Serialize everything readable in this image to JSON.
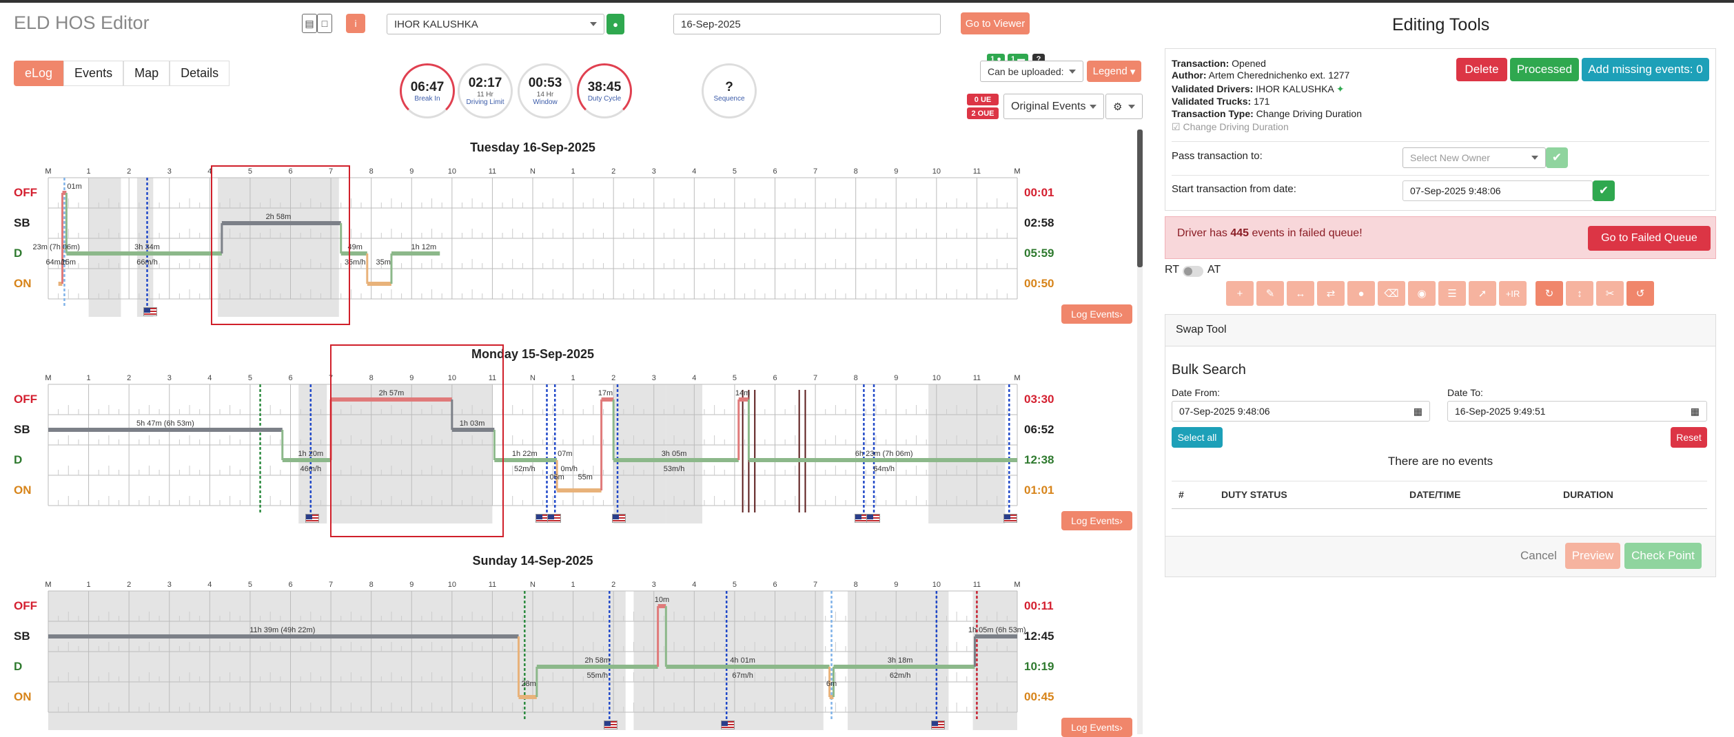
{
  "app": {
    "title": "ELD HOS Editor"
  },
  "header": {
    "driver_select": "IHOR KALUSHKA",
    "date_input": "16-Sep-2025",
    "go_viewer": "Go to Viewer"
  },
  "tabs": [
    "eLog",
    "Events",
    "Map",
    "Details"
  ],
  "gauges": [
    {
      "value": "06:47",
      "sub": "",
      "label": "Break In"
    },
    {
      "value": "02:17",
      "sub": "11 Hr",
      "label": "Driving Limit"
    },
    {
      "value": "00:53",
      "sub": "14 Hr",
      "label": "Window"
    },
    {
      "value": "38:45",
      "sub": "",
      "label": "Duty Cycle"
    },
    {
      "value": "?",
      "sub": "",
      "label": "Sequence"
    }
  ],
  "badges": {
    "drivers": "1",
    "trucks": "1",
    "question": "?",
    "ue": "0 UE",
    "oue": "2 OUE"
  },
  "controls": {
    "upload_select": "Can be uploaded:",
    "legend": "Legend",
    "events_select": "Original Events"
  },
  "status_labels": [
    "OFF",
    "SB",
    "D",
    "ON"
  ],
  "hour_labels": [
    "M",
    "1",
    "2",
    "3",
    "4",
    "5",
    "6",
    "7",
    "8",
    "9",
    "10",
    "11",
    "N",
    "1",
    "2",
    "3",
    "4",
    "5",
    "6",
    "7",
    "8",
    "9",
    "10",
    "11",
    "M"
  ],
  "days": [
    {
      "title": "Tuesday 16-Sep-2025",
      "totals": [
        "00:01",
        "02:58",
        "05:59",
        "00:50"
      ],
      "segments": [
        {
          "status": "ON",
          "start": 0.25,
          "end": 0.35
        },
        {
          "status": "OFF",
          "start": 0.35,
          "end": 0.45
        },
        {
          "status": "D",
          "start": 0.45,
          "end": 4.3
        },
        {
          "status": "SB",
          "start": 4.3,
          "end": 7.25
        },
        {
          "status": "D",
          "start": 7.25,
          "end": 7.9
        },
        {
          "status": "ON",
          "start": 7.9,
          "end": 8.5
        },
        {
          "status": "D",
          "start": 8.5,
          "end": 9.7
        }
      ],
      "labels": [
        {
          "text": "01m",
          "h": 0.65,
          "row": 0
        },
        {
          "text": "2h 58m",
          "h": 5.7,
          "row": 1
        },
        {
          "text": "23m (7h 06m)",
          "h": 0.2,
          "row": 2
        },
        {
          "text": "3h 34m",
          "h": 2.45,
          "row": 2
        },
        {
          "text": "49m",
          "h": 7.6,
          "row": 2
        },
        {
          "text": "1h 12m",
          "h": 9.3,
          "row": 2
        },
        {
          "text": "64m/h",
          "h": 0.2,
          "row": 3
        },
        {
          "text": "66m/h",
          "h": 2.45,
          "row": 3
        },
        {
          "text": "35m/h",
          "h": 7.6,
          "row": 3
        },
        {
          "text": "15m",
          "h": 0.5,
          "row": 3
        },
        {
          "text": "35m",
          "h": 8.3,
          "row": 3
        }
      ],
      "shades": [
        [
          1.0,
          1.8
        ],
        [
          2.2,
          2.6
        ],
        [
          4.2,
          7.2
        ]
      ],
      "dashes": [
        {
          "h": 0.4,
          "c": "#7fb2e8"
        },
        {
          "h": 2.45,
          "c": "#2048c8"
        }
      ],
      "flags": [
        2.5
      ],
      "log_events": "Log Events"
    },
    {
      "title": "Monday 15-Sep-2025",
      "totals": [
        "03:30",
        "06:52",
        "12:38",
        "01:01"
      ],
      "segments": [
        {
          "status": "SB",
          "start": 0,
          "end": 5.8
        },
        {
          "status": "D",
          "start": 5.8,
          "end": 7.0
        },
        {
          "status": "OFF",
          "start": 7.0,
          "end": 10.0
        },
        {
          "status": "SB",
          "start": 10.0,
          "end": 11.05
        },
        {
          "status": "D",
          "start": 11.05,
          "end": 12.6
        },
        {
          "status": "ON",
          "start": 12.6,
          "end": 13.7
        },
        {
          "status": "OFF",
          "start": 13.7,
          "end": 14.0
        },
        {
          "status": "D",
          "start": 14.0,
          "end": 17.1
        },
        {
          "status": "OFF",
          "start": 17.1,
          "end": 17.35
        },
        {
          "status": "D",
          "start": 17.35,
          "end": 24.0
        }
      ],
      "labels": [
        {
          "text": "2h 57m",
          "h": 8.5,
          "row": 0
        },
        {
          "text": "17m",
          "h": 13.8,
          "row": 0
        },
        {
          "text": "14m",
          "h": 17.2,
          "row": 0
        },
        {
          "text": "5h 47m (6h 53m)",
          "h": 2.9,
          "row": 1
        },
        {
          "text": "1h 03m",
          "h": 10.5,
          "row": 1
        },
        {
          "text": "1h 20m",
          "h": 6.5,
          "row": 2
        },
        {
          "text": "1h 22m",
          "h": 11.8,
          "row": 2
        },
        {
          "text": "07m",
          "h": 12.8,
          "row": 2
        },
        {
          "text": "3h 05m",
          "h": 15.5,
          "row": 2
        },
        {
          "text": "6h 23m (7h 06m)",
          "h": 20.7,
          "row": 2
        },
        {
          "text": "46m/h",
          "h": 6.5,
          "row": 3
        },
        {
          "text": "52m/h",
          "h": 11.8,
          "row": 3
        },
        {
          "text": "0m/h",
          "h": 12.9,
          "row": 3
        },
        {
          "text": "53m/h",
          "h": 15.5,
          "row": 3
        },
        {
          "text": "64m/h",
          "h": 20.7,
          "row": 3
        },
        {
          "text": "05m",
          "h": 12.6,
          "row": 4
        },
        {
          "text": "55m",
          "h": 13.3,
          "row": 4
        }
      ],
      "shades": [
        [
          6.2,
          6.9
        ],
        [
          7.0,
          11.0
        ],
        [
          14.0,
          15.3
        ],
        [
          15.3,
          16.2
        ],
        [
          21.8,
          23.7
        ]
      ],
      "dashes": [
        {
          "h": 5.25,
          "c": "#2b8a3e"
        },
        {
          "h": 6.5,
          "c": "#2048c8"
        },
        {
          "h": 12.35,
          "c": "#2048c8"
        },
        {
          "h": 12.55,
          "c": "#2048c8"
        },
        {
          "h": 14.1,
          "c": "#2048c8"
        },
        {
          "h": 20.2,
          "c": "#2048c8"
        },
        {
          "h": 20.45,
          "c": "#2048c8"
        },
        {
          "h": 23.8,
          "c": "#2048c8"
        }
      ],
      "darklines": [
        17.2,
        17.35,
        17.5,
        18.6,
        18.75
      ],
      "flags": [
        6.5,
        12.2,
        12.5,
        14.1,
        20.1,
        20.4,
        23.8
      ],
      "log_events": "Log Events"
    },
    {
      "title": "Sunday 14-Sep-2025",
      "totals": [
        "00:11",
        "12:45",
        "10:19",
        "00:45"
      ],
      "segments": [
        {
          "status": "SB",
          "start": 0,
          "end": 11.65
        },
        {
          "status": "ON",
          "start": 11.65,
          "end": 12.1
        },
        {
          "status": "D",
          "start": 12.1,
          "end": 15.1
        },
        {
          "status": "OFF",
          "start": 15.1,
          "end": 15.3
        },
        {
          "status": "D",
          "start": 15.3,
          "end": 19.35
        },
        {
          "status": "ON",
          "start": 19.35,
          "end": 19.45
        },
        {
          "status": "D",
          "start": 19.45,
          "end": 22.95
        },
        {
          "status": "SB",
          "start": 22.95,
          "end": 24.0
        }
      ],
      "labels": [
        {
          "text": "10m",
          "h": 15.2,
          "row": 0
        },
        {
          "text": "11h 39m (49h 22m)",
          "h": 5.8,
          "row": 1
        },
        {
          "text": "1h 05m (6h 53m)",
          "h": 23.5,
          "row": 1
        },
        {
          "text": "2h 58m",
          "h": 13.6,
          "row": 2
        },
        {
          "text": "4h 01m",
          "h": 17.2,
          "row": 2
        },
        {
          "text": "3h 18m",
          "h": 21.1,
          "row": 2
        },
        {
          "text": "55m/h",
          "h": 13.6,
          "row": 3
        },
        {
          "text": "67m/h",
          "h": 17.2,
          "row": 3
        },
        {
          "text": "62m/h",
          "h": 21.1,
          "row": 3
        },
        {
          "text": "28m",
          "h": 11.9,
          "row": 4
        },
        {
          "text": "6m",
          "h": 19.4,
          "row": 4
        }
      ],
      "shades": [
        [
          0,
          14.3
        ],
        [
          14.5,
          19.2
        ],
        [
          19.8,
          22.3
        ],
        [
          22.9,
          24
        ]
      ],
      "dashes": [
        {
          "h": 11.8,
          "c": "#2b8a3e"
        },
        {
          "h": 13.9,
          "c": "#2048c8"
        },
        {
          "h": 16.8,
          "c": "#2048c8"
        },
        {
          "h": 19.4,
          "c": "#7fb2e8"
        },
        {
          "h": 22.0,
          "c": "#2048c8"
        },
        {
          "h": 23.0,
          "c": "#c82030"
        }
      ],
      "flags": [
        13.9,
        16.8,
        22.0
      ],
      "log_events": "Log Events"
    }
  ],
  "panel": {
    "title": "Editing Tools",
    "transaction_label": "Transaction:",
    "transaction_value": "Opened",
    "author_label": "Author:",
    "author_value": "Artem Cherednichenko ext. 1277",
    "drivers_label": "Validated Drivers:",
    "drivers_value": "IHOR KALUSHKA",
    "trucks_label": "Validated Trucks:",
    "trucks_value": "171",
    "type_label": "Transaction Type:",
    "type_value": "Change Driving Duration",
    "checkbox_label": "Change Driving Duration",
    "delete": "Delete",
    "processed": "Processed",
    "add_missing": "Add missing events: 0",
    "pass_label": "Pass transaction to:",
    "owner_placeholder": "Select New Owner",
    "start_label": "Start transaction from date:",
    "start_value": "07-Sep-2025 9:48:06",
    "alert_prefix": "Driver has",
    "alert_count": "445",
    "alert_suffix": "events in failed queue!",
    "go_failed": "Go to Failed Queue",
    "rt": "RT",
    "at": "AT",
    "swap_tool": "Swap Tool",
    "bulk_search": "Bulk Search",
    "date_from_label": "Date From:",
    "date_from": "07-Sep-2025 9:48:06",
    "date_to_label": "Date To:",
    "date_to": "16-Sep-2025 9:49:51",
    "select_all": "Select all",
    "reset": "Reset",
    "no_events": "There are no events",
    "columns": [
      "#",
      "DUTY STATUS",
      "DATE/TIME",
      "DURATION"
    ],
    "cancel": "Cancel",
    "preview": "Preview",
    "checkpoint": "Check Point"
  }
}
